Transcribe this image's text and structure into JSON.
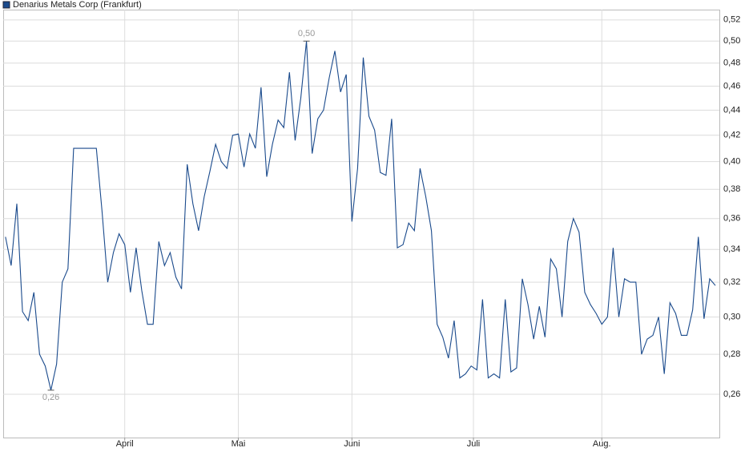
{
  "chart_data": {
    "type": "line",
    "log_scale": true,
    "grid": true,
    "legend": "top-left",
    "ylim": [
      0.24,
      0.53
    ],
    "yticks": [
      {
        "value": 0.26,
        "label": "0,26"
      },
      {
        "value": 0.28,
        "label": "0,28"
      },
      {
        "value": 0.3,
        "label": "0,30"
      },
      {
        "value": 0.32,
        "label": "0,32"
      },
      {
        "value": 0.34,
        "label": "0,34"
      },
      {
        "value": 0.36,
        "label": "0,36"
      },
      {
        "value": 0.38,
        "label": "0,38"
      },
      {
        "value": 0.4,
        "label": "0,40"
      },
      {
        "value": 0.42,
        "label": "0,42"
      },
      {
        "value": 0.44,
        "label": "0,44"
      },
      {
        "value": 0.46,
        "label": "0,46"
      },
      {
        "value": 0.48,
        "label": "0,48"
      },
      {
        "value": 0.5,
        "label": "0,50"
      },
      {
        "value": 0.52,
        "label": "0,52"
      }
    ],
    "xlim": [
      -0.4,
      125.7
    ],
    "xticks": [
      {
        "value": 21,
        "label": "April"
      },
      {
        "value": 41,
        "label": "Mai"
      },
      {
        "value": 61,
        "label": "Juni"
      },
      {
        "value": 82.4,
        "label": "Juli"
      },
      {
        "value": 105,
        "label": "Aug."
      }
    ],
    "series": [
      {
        "name": "Denarius Metals Corp (Frankfurt)",
        "color": "#1a4a8c",
        "values": [
          0.348,
          0.33,
          0.37,
          0.303,
          0.298,
          0.314,
          0.28,
          0.274,
          0.262,
          0.275,
          0.32,
          0.328,
          0.41,
          0.41,
          0.41,
          0.41,
          0.41,
          0.365,
          0.32,
          0.338,
          0.35,
          0.343,
          0.314,
          0.341,
          0.315,
          0.296,
          0.296,
          0.345,
          0.33,
          0.338,
          0.323,
          0.316,
          0.398,
          0.37,
          0.352,
          0.375,
          0.393,
          0.413,
          0.4,
          0.395,
          0.42,
          0.421,
          0.396,
          0.421,
          0.41,
          0.459,
          0.389,
          0.413,
          0.432,
          0.426,
          0.472,
          0.416,
          0.45,
          0.5,
          0.406,
          0.433,
          0.44,
          0.467,
          0.491,
          0.455,
          0.47,
          0.358,
          0.395,
          0.485,
          0.435,
          0.424,
          0.392,
          0.39,
          0.433,
          0.341,
          0.343,
          0.357,
          0.352,
          0.395,
          0.375,
          0.352,
          0.296,
          0.289,
          0.278,
          0.298,
          0.268,
          0.27,
          0.274,
          0.272,
          0.31,
          0.268,
          0.27,
          0.268,
          0.31,
          0.271,
          0.273,
          0.322,
          0.307,
          0.288,
          0.306,
          0.289,
          0.334,
          0.328,
          0.3,
          0.345,
          0.36,
          0.351,
          0.314,
          0.307,
          0.302,
          0.296,
          0.3,
          0.341,
          0.3,
          0.322,
          0.32,
          0.32,
          0.28,
          0.288,
          0.29,
          0.3,
          0.27,
          0.308,
          0.302,
          0.29,
          0.29,
          0.304,
          0.348,
          0.299,
          0.322,
          0.318
        ],
        "value_labels": [
          null,
          null,
          null,
          null,
          null,
          null,
          null,
          null,
          "0,26",
          null,
          null,
          null,
          null,
          null,
          null,
          null,
          null,
          null,
          null,
          null,
          null,
          null,
          null,
          null,
          null,
          null,
          null,
          null,
          null,
          null,
          null,
          null,
          null,
          null,
          null,
          null,
          null,
          null,
          null,
          null,
          null,
          null,
          null,
          null,
          null,
          null,
          null,
          null,
          null,
          null,
          null,
          null,
          null,
          "0,50",
          null,
          null,
          null,
          null,
          null,
          null,
          null,
          null,
          null,
          null,
          null,
          null,
          null,
          null,
          null,
          null,
          null,
          null,
          null,
          null,
          null,
          null,
          null,
          null,
          null,
          null,
          null,
          null,
          null,
          null,
          null,
          null,
          null,
          null,
          null,
          null,
          null,
          null,
          null,
          null,
          null,
          null,
          null,
          null,
          null,
          null,
          null,
          null,
          null,
          null,
          null,
          null,
          null,
          null,
          null,
          null,
          null,
          null,
          null,
          null,
          null,
          null,
          null,
          null,
          null,
          null,
          null,
          null,
          null,
          null,
          null,
          null
        ]
      }
    ]
  }
}
